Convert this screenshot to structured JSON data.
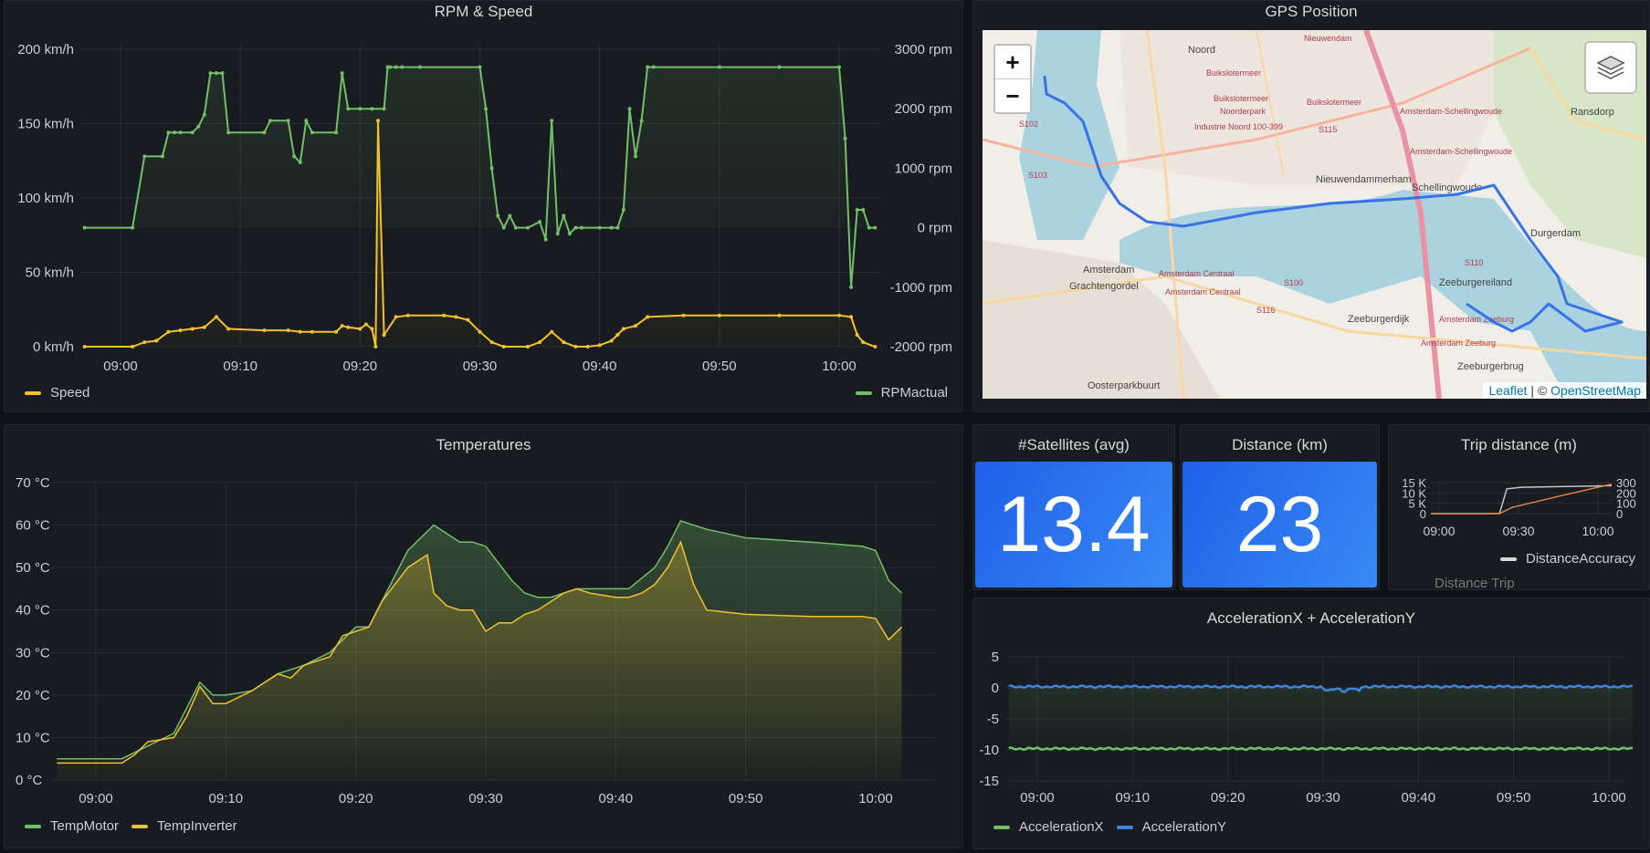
{
  "rpm_speed": {
    "title": "RPM & Speed",
    "legend": [
      {
        "label": "Speed",
        "color": "#f2c12e"
      },
      {
        "label": "RPMactual",
        "color": "#73bf69"
      }
    ],
    "chart_data": {
      "type": "line",
      "x_ticks": [
        "09:00",
        "09:10",
        "09:20",
        "09:30",
        "09:40",
        "09:50",
        "10:00"
      ],
      "y_left_ticks": [
        "200 km/h",
        "150 km/h",
        "100 km/h",
        "50 km/h",
        "0 km/h"
      ],
      "y_right_ticks": [
        "3000 rpm",
        "2000 rpm",
        "1000 rpm",
        "0 rpm",
        "-1000 rpm",
        "-2000 rpm"
      ],
      "ylim_left": [
        0,
        200
      ],
      "ylim_right": [
        -2000,
        3000
      ],
      "series": [
        {
          "name": "RPMactual",
          "axis": "right",
          "color": "#73bf69",
          "x": [
            -3,
            1,
            2,
            3.5,
            4,
            4.5,
            5,
            6,
            6.5,
            7,
            7.5,
            8,
            8.5,
            9,
            12,
            12.5,
            14,
            14.5,
            15,
            15.5,
            16,
            18,
            18.5,
            19,
            20,
            21,
            22,
            22.3,
            22.5,
            23,
            23.5,
            25,
            30,
            30.5,
            31,
            31.5,
            32,
            32.5,
            33,
            34,
            35,
            35.5,
            36,
            36.5,
            37,
            37.5,
            38,
            38.5,
            40,
            41,
            41.5,
            42,
            42.5,
            43,
            43.5,
            44,
            44.5,
            50,
            55,
            60,
            60.5,
            61,
            61.5,
            62,
            62.5,
            63
          ],
          "y": [
            0,
            0,
            1200,
            1200,
            1600,
            1600,
            1600,
            1600,
            1700,
            1900,
            2600,
            2600,
            2600,
            1600,
            1600,
            1800,
            1800,
            1200,
            1100,
            1800,
            1600,
            1600,
            2600,
            2000,
            2000,
            2000,
            2000,
            2700,
            2700,
            2700,
            2700,
            2700,
            2700,
            2000,
            1000,
            200,
            0,
            200,
            0,
            0,
            100,
            -200,
            1800,
            -100,
            200,
            -100,
            0,
            0,
            0,
            0,
            0,
            300,
            2000,
            1200,
            1800,
            2700,
            2700,
            2700,
            2700,
            2700,
            1500,
            -1000,
            300,
            300,
            0,
            0
          ]
        },
        {
          "name": "Speed",
          "axis": "left",
          "color": "#f2c12e",
          "x": [
            -3,
            1,
            2,
            3,
            4,
            5,
            6,
            7,
            8,
            9,
            12,
            14,
            15,
            16,
            18,
            18.5,
            19,
            20,
            20.5,
            21,
            21.3,
            21.5,
            22,
            23,
            24,
            27,
            28,
            29,
            30,
            31,
            32,
            34,
            35,
            36,
            37,
            38,
            39,
            40,
            41,
            41.5,
            42,
            43,
            44,
            47,
            50,
            55,
            60,
            61,
            61.5,
            62,
            63
          ],
          "y": [
            0,
            0,
            3,
            4,
            10,
            11,
            12,
            13,
            20,
            12,
            11,
            11,
            10,
            10,
            10,
            14,
            13,
            12,
            15,
            12,
            0,
            152,
            8,
            20,
            21,
            21,
            20,
            18,
            10,
            3,
            0,
            0,
            3,
            10,
            3,
            0,
            0,
            1,
            4,
            8,
            12,
            14,
            20,
            21,
            21,
            21,
            21,
            20,
            8,
            3,
            0
          ]
        }
      ]
    }
  },
  "gps": {
    "title": "GPS Position",
    "zoom_in": "+",
    "zoom_out": "−",
    "layers_icon": "layers-icon",
    "attribution_leaflet": "Leaflet",
    "attribution_sep": "| ©",
    "attribution_osm": "OpenStreetMap",
    "place_labels": [
      {
        "text": "Noord",
        "dark": true
      },
      {
        "text": "Nieuwendam",
        "dark": false
      },
      {
        "text": "Buikslotermeer",
        "dark": false
      },
      {
        "text": "Buikslotermeer",
        "dark": false
      },
      {
        "text": "Buikslotermeer",
        "dark": false
      },
      {
        "text": "Noorderpark",
        "dark": false
      },
      {
        "text": "Industrie Noord 100-399",
        "dark": false
      },
      {
        "text": "Amsterdam-Schellingwoude",
        "dark": false
      },
      {
        "text": "Amsterdam-Schellingwoude",
        "dark": false
      },
      {
        "text": "Ransdorp",
        "dark": true
      },
      {
        "text": "Nieuwendammerham",
        "dark": true
      },
      {
        "text": "Schellingwoude",
        "dark": true
      },
      {
        "text": "Durgerdam",
        "dark": true
      },
      {
        "text": "Amsterdam",
        "dark": true
      },
      {
        "text": "Amsterdam Centraal",
        "dark": false
      },
      {
        "text": "Amsterdam Centraal",
        "dark": false
      },
      {
        "text": "Zeeburgereiland",
        "dark": true
      },
      {
        "text": "Amsterdam Zeeburg",
        "dark": false
      },
      {
        "text": "Amsterdam Zeeburg",
        "dark": false
      },
      {
        "text": "Zeeburgerbrug",
        "dark": true
      },
      {
        "text": "Grachtengordel",
        "dark": true
      },
      {
        "text": "Oosterparkbuurt",
        "dark": true
      },
      {
        "text": "Zeeburgerdijk",
        "dark": true
      },
      {
        "text": "S102",
        "dark": false
      },
      {
        "text": "S103",
        "dark": false
      },
      {
        "text": "S115",
        "dark": false
      },
      {
        "text": "S100",
        "dark": false
      },
      {
        "text": "S116",
        "dark": false
      },
      {
        "text": "S110",
        "dark": false
      }
    ]
  },
  "temps": {
    "title": "Temperatures",
    "legend": [
      {
        "label": "TempMotor",
        "color": "#73bf69"
      },
      {
        "label": "TempInverter",
        "color": "#f2c12e"
      }
    ],
    "chart_data": {
      "type": "line",
      "x_ticks": [
        "09:00",
        "09:10",
        "09:20",
        "09:30",
        "09:40",
        "09:50",
        "10:00"
      ],
      "y_ticks": [
        "70 °C",
        "60 °C",
        "50 °C",
        "40 °C",
        "30 °C",
        "20 °C",
        "10 °C",
        "0 °C"
      ],
      "ylim": [
        0,
        70
      ],
      "series": [
        {
          "name": "TempMotor",
          "color": "#73bf69",
          "x": [
            -3,
            2,
            4,
            6,
            7,
            8,
            9,
            10,
            12,
            14,
            15,
            16,
            18,
            19,
            20,
            21,
            22,
            24,
            26,
            27,
            28,
            29,
            30,
            31,
            32,
            33,
            34,
            35,
            36,
            37,
            38,
            39,
            40,
            41,
            43,
            44,
            45,
            47,
            50,
            55,
            59,
            60,
            61,
            62
          ],
          "y": [
            5,
            5,
            8,
            11,
            17,
            23,
            20,
            20,
            21,
            25,
            26,
            27,
            30,
            33,
            36,
            36,
            42,
            54,
            60,
            58,
            56,
            56,
            55,
            51,
            47,
            44,
            43,
            43,
            44,
            45,
            45,
            45,
            45,
            45,
            50,
            55,
            61,
            59,
            57,
            56,
            55,
            54,
            47,
            44
          ]
        },
        {
          "name": "TempInverter",
          "color": "#f2c12e",
          "x": [
            -3,
            2,
            3,
            4,
            6,
            7,
            8,
            9,
            10,
            12,
            14,
            15,
            16,
            18,
            19,
            20,
            21,
            22,
            24,
            25.5,
            26,
            27,
            28,
            29,
            30,
            31,
            32,
            33,
            34,
            35,
            36,
            37,
            38,
            40,
            41,
            42,
            43,
            44,
            45,
            46,
            47,
            50,
            55,
            59,
            60,
            61,
            62
          ],
          "y": [
            4,
            4,
            6,
            9,
            10,
            15,
            22,
            18,
            18,
            21,
            25,
            24,
            27,
            29,
            34,
            35,
            36,
            42,
            50,
            53,
            44,
            41,
            40,
            40,
            35,
            37,
            37,
            39,
            40,
            42,
            44,
            45,
            44,
            43,
            43,
            44,
            46,
            50,
            56,
            46,
            40,
            39,
            38.5,
            38.5,
            38,
            33,
            36
          ]
        }
      ]
    }
  },
  "satellites": {
    "title": "#Satellites (avg)",
    "value": "13.4"
  },
  "distance": {
    "title": "Distance (km)",
    "value": "23"
  },
  "trip": {
    "title": "Trip distance (m)",
    "left_ticks": [
      "15 K",
      "10 K",
      "5 K",
      "0"
    ],
    "right_ticks": [
      "300",
      "200",
      "100",
      "0"
    ],
    "x_ticks": [
      "09:00",
      "09:30",
      "10:00"
    ],
    "legend": [
      {
        "label": "DistanceAccuracy",
        "color": "#d8d9da"
      }
    ],
    "legend_cut": "Distance Trip",
    "chart_data": {
      "type": "line",
      "series": [
        {
          "name": "DistanceAccuracy",
          "color": "#c8c8c8",
          "x": [
            0,
            0.38,
            0.42,
            0.5,
            1
          ],
          "y": [
            0,
            0,
            0.8,
            0.85,
            0.9
          ]
        },
        {
          "name": "Distance Trip",
          "color": "#e6834a",
          "x": [
            0,
            0.38,
            0.45,
            0.7,
            1
          ],
          "y": [
            0,
            0,
            0.2,
            0.55,
            0.95
          ]
        }
      ]
    }
  },
  "accel": {
    "title": "AccelerationX + AccelerationY",
    "legend": [
      {
        "label": "AccelerationX",
        "color": "#73bf69"
      },
      {
        "label": "AccelerationY",
        "color": "#3d85e0"
      }
    ],
    "chart_data": {
      "type": "line",
      "x_ticks": [
        "09:00",
        "09:10",
        "09:20",
        "09:30",
        "09:40",
        "09:50",
        "10:00"
      ],
      "y_ticks": [
        "5",
        "0",
        "-5",
        "-10",
        "-15"
      ],
      "ylim": [
        -15,
        5
      ],
      "series": [
        {
          "name": "AccelerationX",
          "color": "#73bf69",
          "mean": -9.8
        },
        {
          "name": "AccelerationY",
          "color": "#3d85e0",
          "mean": 0.2
        }
      ]
    }
  }
}
